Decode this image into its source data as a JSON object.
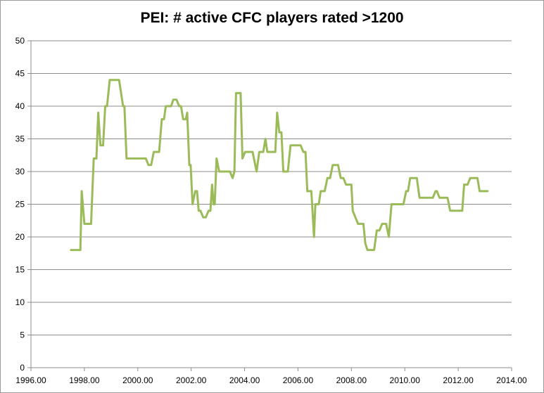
{
  "chart_data": {
    "type": "line",
    "title": "PEI:  # active CFC players rated >1200",
    "xlabel": "",
    "ylabel": "",
    "xlim": [
      1996,
      2014
    ],
    "ylim": [
      0,
      50
    ],
    "x_ticks": [
      "1996.00",
      "1998.00",
      "2000.00",
      "2002.00",
      "2004.00",
      "2006.00",
      "2008.00",
      "2010.00",
      "2012.00",
      "2014.00"
    ],
    "y_ticks": [
      "0",
      "5",
      "10",
      "15",
      "20",
      "25",
      "30",
      "35",
      "40",
      "45",
      "50"
    ],
    "grid": "horizontal",
    "legend": "none",
    "line_color": "#9bbb59",
    "series": [
      {
        "points": [
          [
            1997.5,
            18
          ],
          [
            1997.85,
            18
          ],
          [
            1997.9,
            27
          ],
          [
            1998.0,
            22
          ],
          [
            1998.25,
            22
          ],
          [
            1998.35,
            32
          ],
          [
            1998.45,
            32
          ],
          [
            1998.52,
            39
          ],
          [
            1998.6,
            34
          ],
          [
            1998.7,
            34
          ],
          [
            1998.78,
            40
          ],
          [
            1998.85,
            40
          ],
          [
            1998.95,
            44
          ],
          [
            1999.3,
            44
          ],
          [
            1999.45,
            40
          ],
          [
            1999.5,
            40
          ],
          [
            1999.58,
            32
          ],
          [
            2000.3,
            32
          ],
          [
            2000.4,
            31
          ],
          [
            2000.5,
            31
          ],
          [
            2000.6,
            33
          ],
          [
            2000.8,
            33
          ],
          [
            2000.9,
            38
          ],
          [
            2000.98,
            38
          ],
          [
            2001.05,
            40
          ],
          [
            2001.25,
            40
          ],
          [
            2001.33,
            41
          ],
          [
            2001.45,
            41
          ],
          [
            2001.55,
            40
          ],
          [
            2001.62,
            40
          ],
          [
            2001.7,
            38
          ],
          [
            2001.8,
            38
          ],
          [
            2001.85,
            39
          ],
          [
            2001.93,
            31
          ],
          [
            2001.98,
            31
          ],
          [
            2002.05,
            25
          ],
          [
            2002.15,
            27
          ],
          [
            2002.22,
            27
          ],
          [
            2002.28,
            24
          ],
          [
            2002.35,
            24
          ],
          [
            2002.45,
            23
          ],
          [
            2002.55,
            23
          ],
          [
            2002.65,
            24
          ],
          [
            2002.72,
            24
          ],
          [
            2002.78,
            28
          ],
          [
            2002.84,
            25
          ],
          [
            2002.88,
            25
          ],
          [
            2002.95,
            32
          ],
          [
            2003.05,
            30
          ],
          [
            2003.45,
            30
          ],
          [
            2003.55,
            29
          ],
          [
            2003.62,
            30
          ],
          [
            2003.68,
            42
          ],
          [
            2003.85,
            42
          ],
          [
            2003.92,
            32
          ],
          [
            2004.02,
            33
          ],
          [
            2004.3,
            33
          ],
          [
            2004.4,
            31
          ],
          [
            2004.45,
            30
          ],
          [
            2004.55,
            33
          ],
          [
            2004.7,
            33
          ],
          [
            2004.78,
            35
          ],
          [
            2004.85,
            33
          ],
          [
            2005.15,
            33
          ],
          [
            2005.22,
            39
          ],
          [
            2005.3,
            36
          ],
          [
            2005.38,
            36
          ],
          [
            2005.45,
            30
          ],
          [
            2005.62,
            30
          ],
          [
            2005.72,
            34
          ],
          [
            2006.1,
            34
          ],
          [
            2006.2,
            33
          ],
          [
            2006.28,
            33
          ],
          [
            2006.35,
            27
          ],
          [
            2006.5,
            27
          ],
          [
            2006.6,
            20
          ],
          [
            2006.65,
            25
          ],
          [
            2006.78,
            25
          ],
          [
            2006.85,
            27
          ],
          [
            2007.0,
            27
          ],
          [
            2007.1,
            29
          ],
          [
            2007.2,
            29
          ],
          [
            2007.3,
            31
          ],
          [
            2007.5,
            31
          ],
          [
            2007.6,
            29
          ],
          [
            2007.7,
            29
          ],
          [
            2007.8,
            28
          ],
          [
            2008.0,
            28
          ],
          [
            2008.05,
            24
          ],
          [
            2008.15,
            23
          ],
          [
            2008.25,
            22
          ],
          [
            2008.45,
            22
          ],
          [
            2008.52,
            19
          ],
          [
            2008.6,
            18
          ],
          [
            2008.85,
            18
          ],
          [
            2008.95,
            21
          ],
          [
            2009.05,
            21
          ],
          [
            2009.15,
            22
          ],
          [
            2009.3,
            22
          ],
          [
            2009.4,
            20
          ],
          [
            2009.5,
            25
          ],
          [
            2009.95,
            25
          ],
          [
            2010.05,
            27
          ],
          [
            2010.12,
            27
          ],
          [
            2010.2,
            29
          ],
          [
            2010.45,
            29
          ],
          [
            2010.55,
            26
          ],
          [
            2011.05,
            26
          ],
          [
            2011.15,
            27
          ],
          [
            2011.2,
            27
          ],
          [
            2011.3,
            26
          ],
          [
            2011.6,
            26
          ],
          [
            2011.7,
            24
          ],
          [
            2012.15,
            24
          ],
          [
            2012.22,
            28
          ],
          [
            2012.35,
            28
          ],
          [
            2012.45,
            29
          ],
          [
            2012.72,
            29
          ],
          [
            2012.8,
            27
          ],
          [
            2013.1,
            27
          ]
        ]
      }
    ]
  }
}
